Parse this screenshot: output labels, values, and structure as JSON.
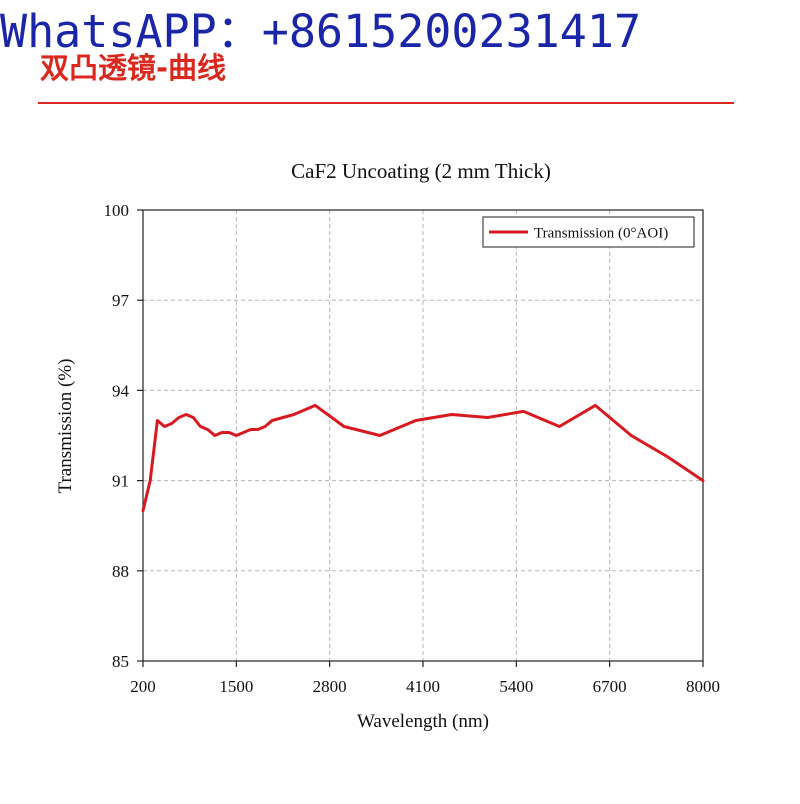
{
  "header": {
    "watermark": "WhatsAPP：+8615200231417",
    "section_title": "双凸透镜-曲线"
  },
  "colors": {
    "watermark": "#1b25a8",
    "accent": "#d9291f",
    "series_line": "#d71920",
    "grid": "#b5b5b5"
  },
  "chart_data": {
    "type": "line",
    "title": "CaF2 Uncoating (2 mm  Thick)",
    "xlabel": "Wavelength (nm)",
    "ylabel": "Transmission (%)",
    "xlim": [
      200,
      8000
    ],
    "ylim": [
      85,
      100
    ],
    "xticks": [
      200,
      1500,
      2800,
      4100,
      5400,
      6700,
      8000
    ],
    "yticks": [
      85,
      88,
      91,
      94,
      97,
      100
    ],
    "grid": true,
    "legend_position": "top-right",
    "series": [
      {
        "name": "Transmission (0°AOI)",
        "color": "#d71920",
        "x": [
          200,
          300,
          400,
          500,
          600,
          700,
          800,
          900,
          1000,
          1100,
          1200,
          1300,
          1400,
          1500,
          1600,
          1700,
          1800,
          1900,
          2000,
          2300,
          2600,
          3000,
          3500,
          4000,
          4500,
          5000,
          5500,
          6000,
          6500,
          7000,
          7500,
          8000
        ],
        "y": [
          90.0,
          91.0,
          93.0,
          92.8,
          92.9,
          93.1,
          93.2,
          93.1,
          92.8,
          92.7,
          92.5,
          92.6,
          92.6,
          92.5,
          92.6,
          92.7,
          92.7,
          92.8,
          93.0,
          93.2,
          93.5,
          92.8,
          92.5,
          93.0,
          93.2,
          93.1,
          93.3,
          92.8,
          93.5,
          92.5,
          91.8,
          91.0
        ]
      }
    ]
  }
}
